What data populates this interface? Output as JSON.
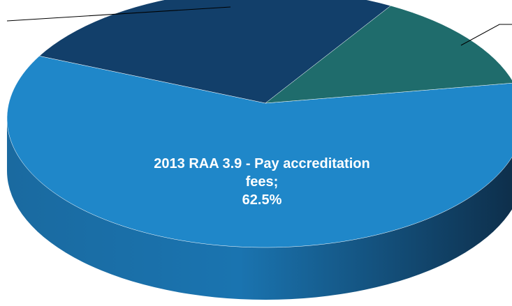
{
  "chart_data": {
    "type": "pie",
    "categories": [
      "2013 RAA 3.9 - Pay accreditation fees;",
      null,
      null
    ],
    "values": [
      62.5,
      25,
      12.5
    ],
    "value_labels": [
      "62.5%",
      null,
      null
    ],
    "colors": [
      "#1f87c9",
      "#123f6a",
      "#1f6c6c"
    ]
  }
}
